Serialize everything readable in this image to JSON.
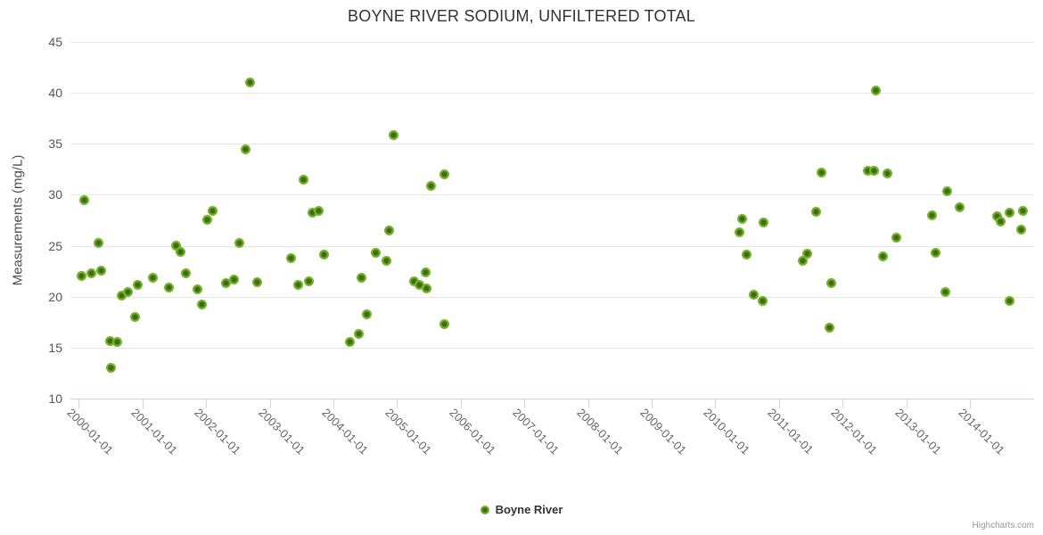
{
  "title": "BOYNE RIVER SODIUM, UNFILTERED TOTAL",
  "credits_label": "Highcharts.com",
  "legend": {
    "series_label": "Boyne River"
  },
  "colors": {
    "title": "#333333",
    "y_axis_title": "#4d4d4d",
    "y_label": "#555555",
    "x_label": "#666666",
    "grid": "#e6e6e6",
    "axis_line": "#ccd6eb",
    "marker_outer": "#74b52a",
    "marker_inner": "#3e6b10",
    "legend_text": "#333333",
    "credits": "#999999"
  },
  "chart_data": {
    "type": "scatter",
    "title": "BOYNE RIVER SODIUM, UNFILTERED TOTAL",
    "xlabel": "",
    "ylabel": "Measurements (mg/L)",
    "ylim": [
      10,
      45
    ],
    "y_ticks": [
      10,
      15,
      20,
      25,
      30,
      35,
      40,
      45
    ],
    "x_tick_years": [
      2000,
      2001,
      2002,
      2003,
      2004,
      2005,
      2006,
      2007,
      2008,
      2009,
      2010,
      2011,
      2012,
      2013,
      2014
    ],
    "x_tick_labels": [
      "2000-01-01",
      "2001-01-01",
      "2002-01-01",
      "2003-01-01",
      "2004-01-01",
      "2005-01-01",
      "2006-01-01",
      "2007-01-01",
      "2008-01-01",
      "2009-01-01",
      "2010-01-01",
      "2011-01-01",
      "2012-01-01",
      "2013-01-01",
      "2014-01-01"
    ],
    "grid": true,
    "legend_position": "bottom",
    "series": [
      {
        "name": "Boyne River",
        "points": [
          [
            2000.04,
            22.0
          ],
          [
            2000.08,
            29.5
          ],
          [
            2000.2,
            22.3
          ],
          [
            2000.31,
            25.3
          ],
          [
            2000.35,
            22.6
          ],
          [
            2000.49,
            15.7
          ],
          [
            2000.5,
            13.0
          ],
          [
            2000.61,
            15.6
          ],
          [
            2000.68,
            20.1
          ],
          [
            2000.77,
            20.5
          ],
          [
            2000.88,
            18.0
          ],
          [
            2000.92,
            21.2
          ],
          [
            2001.16,
            21.9
          ],
          [
            2001.41,
            20.9
          ],
          [
            2001.53,
            25.0
          ],
          [
            2001.6,
            24.4
          ],
          [
            2001.69,
            22.3
          ],
          [
            2001.86,
            20.7
          ],
          [
            2001.93,
            19.2
          ],
          [
            2002.02,
            27.5
          ],
          [
            2002.1,
            28.4
          ],
          [
            2002.31,
            21.3
          ],
          [
            2002.44,
            21.7
          ],
          [
            2002.52,
            25.3
          ],
          [
            2002.62,
            34.4
          ],
          [
            2002.69,
            41.0
          ],
          [
            2002.81,
            21.4
          ],
          [
            2003.34,
            23.8
          ],
          [
            2003.45,
            21.2
          ],
          [
            2003.53,
            31.5
          ],
          [
            2003.62,
            21.5
          ],
          [
            2003.67,
            28.2
          ],
          [
            2003.77,
            28.4
          ],
          [
            2003.85,
            24.1
          ],
          [
            2004.26,
            15.6
          ],
          [
            2004.4,
            16.4
          ],
          [
            2004.44,
            21.9
          ],
          [
            2004.53,
            18.3
          ],
          [
            2004.66,
            24.3
          ],
          [
            2004.83,
            23.5
          ],
          [
            2004.87,
            26.5
          ],
          [
            2004.94,
            35.8
          ],
          [
            2005.27,
            21.5
          ],
          [
            2005.35,
            21.2
          ],
          [
            2005.45,
            22.4
          ],
          [
            2005.46,
            20.8
          ],
          [
            2005.54,
            30.9
          ],
          [
            2005.74,
            32.0
          ],
          [
            2005.75,
            17.3
          ],
          [
            2010.38,
            26.3
          ],
          [
            2010.42,
            27.6
          ],
          [
            2010.49,
            24.1
          ],
          [
            2010.61,
            20.2
          ],
          [
            2010.75,
            19.6
          ],
          [
            2010.76,
            27.3
          ],
          [
            2011.38,
            23.5
          ],
          [
            2011.45,
            24.2
          ],
          [
            2011.58,
            28.3
          ],
          [
            2011.67,
            32.2
          ],
          [
            2011.8,
            17.0
          ],
          [
            2011.83,
            21.3
          ],
          [
            2012.4,
            32.3
          ],
          [
            2012.5,
            32.3
          ],
          [
            2012.52,
            40.2
          ],
          [
            2012.63,
            24.0
          ],
          [
            2012.71,
            32.1
          ],
          [
            2012.84,
            25.8
          ],
          [
            2013.41,
            28.0
          ],
          [
            2013.46,
            24.3
          ],
          [
            2013.61,
            20.5
          ],
          [
            2013.64,
            30.3
          ],
          [
            2013.84,
            28.8
          ],
          [
            2014.43,
            27.9
          ],
          [
            2014.48,
            27.4
          ],
          [
            2014.62,
            19.6
          ],
          [
            2014.63,
            28.2
          ],
          [
            2014.8,
            26.6
          ],
          [
            2014.83,
            28.4
          ]
        ]
      }
    ]
  }
}
